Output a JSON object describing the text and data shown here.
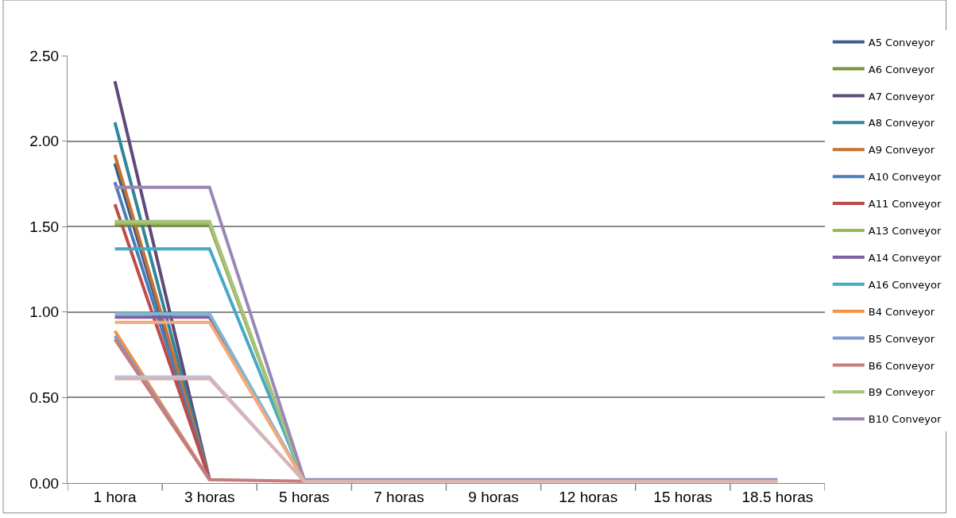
{
  "chart_data": {
    "type": "line",
    "categories": [
      "1 hora",
      "3 horas",
      "5 horas",
      "7 horas",
      "9 horas",
      "12 horas",
      "15 horas",
      "18.5 horas"
    ],
    "series": [
      {
        "name": "A5 Conveyor",
        "color": "#385d8a",
        "values": [
          1.87,
          0.02,
          null,
          null,
          null,
          null,
          null,
          null
        ]
      },
      {
        "name": "A6 Conveyor",
        "color": "#77933c",
        "values": [
          1.51,
          1.51,
          0.01,
          null,
          null,
          null,
          null,
          null
        ]
      },
      {
        "name": "A7 Conveyor",
        "color": "#5f497a",
        "values": [
          2.35,
          0.02,
          null,
          null,
          null,
          null,
          null,
          null
        ]
      },
      {
        "name": "A8 Conveyor",
        "color": "#31859c",
        "values": [
          2.11,
          0.02,
          null,
          null,
          null,
          null,
          null,
          null
        ]
      },
      {
        "name": "A9 Conveyor",
        "color": "#c6722e",
        "values": [
          1.92,
          0.02,
          null,
          null,
          null,
          null,
          null,
          null
        ]
      },
      {
        "name": "A10 Conveyor",
        "color": "#4a7ebb",
        "values": [
          1.76,
          0.02,
          null,
          null,
          null,
          null,
          null,
          null
        ]
      },
      {
        "name": "A11 Conveyor",
        "color": "#be4b48",
        "values": [
          1.63,
          0.02,
          null,
          null,
          null,
          null,
          null,
          null
        ]
      },
      {
        "name": "A13 Conveyor",
        "color": "#98b954",
        "values": [
          1.52,
          1.52,
          0.01,
          null,
          null,
          null,
          null,
          null
        ]
      },
      {
        "name": "A14 Conveyor",
        "color": "#7d60a0",
        "values": [
          0.97,
          0.97,
          0.01,
          null,
          null,
          null,
          null,
          null
        ]
      },
      {
        "name": "A16 Conveyor",
        "color": "#46aac5",
        "values": [
          1.37,
          1.37,
          0.01,
          null,
          null,
          null,
          null,
          null
        ]
      },
      {
        "name": "B4 Conveyor",
        "color": "#f69240",
        "values": [
          0.89,
          0.02,
          null,
          null,
          null,
          null,
          null,
          null
        ]
      },
      {
        "name": "B5 Conveyor",
        "color": "#7e9ccf",
        "values": [
          0.86,
          0.02,
          null,
          null,
          null,
          null,
          null,
          null
        ]
      },
      {
        "name": "B6 Conveyor",
        "color": "#c97b7a",
        "values": [
          0.84,
          0.02,
          0.01,
          null,
          null,
          null,
          null,
          null
        ]
      },
      {
        "name": "B9 Conveyor",
        "color": "#a7c37a",
        "values": [
          1.53,
          1.53,
          0.01,
          null,
          null,
          null,
          null,
          null
        ]
      },
      {
        "name": "B10 Conveyor",
        "color": "#9a88b4",
        "values": [
          1.73,
          1.73,
          0.02,
          0.02,
          0.02,
          0.02,
          0.02,
          0.02
        ]
      },
      {
        "color": "#7fb7d0",
        "values": [
          0.99,
          0.99,
          0.01,
          null,
          null,
          null,
          null,
          null
        ]
      },
      {
        "color": "#f7a878",
        "values": [
          0.94,
          0.94,
          0.01,
          null,
          null,
          null,
          null,
          null
        ]
      },
      {
        "color": "#b4c6de",
        "values": [
          0.62,
          0.62,
          0.01,
          null,
          null,
          null,
          null,
          null
        ]
      },
      {
        "color": "#dab2b2",
        "values": [
          0.61,
          0.61,
          0.01,
          0.01,
          0.01,
          0.01,
          0.01,
          0.01
        ]
      }
    ],
    "ylim": [
      0,
      2.5
    ],
    "yticks": [
      {
        "value": 0,
        "label": "0.00"
      },
      {
        "value": 0.5,
        "label": "0.50"
      },
      {
        "value": 1,
        "label": "1.00"
      },
      {
        "value": 1.5,
        "label": "1.50"
      },
      {
        "value": 2,
        "label": "2.00"
      },
      {
        "value": 2.5,
        "label": "2.50"
      }
    ],
    "grid": "y",
    "legend": "right",
    "marker": "none",
    "line_style": "solid"
  }
}
